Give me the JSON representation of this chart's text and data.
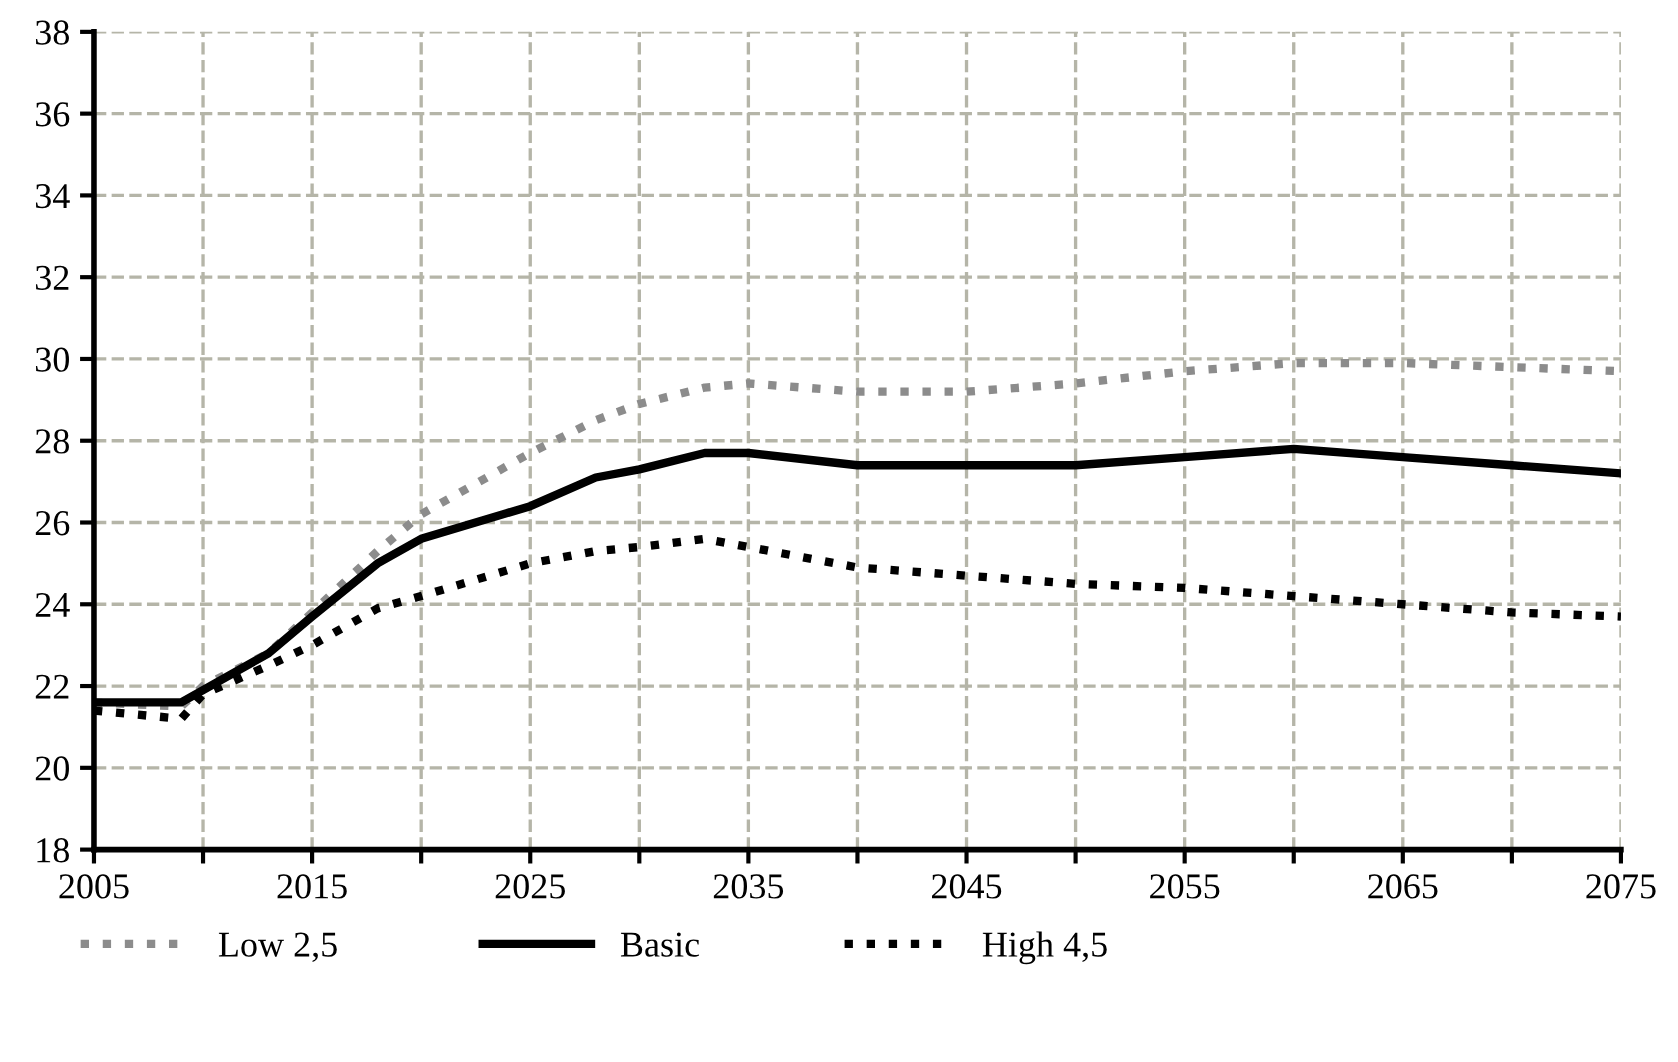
{
  "chart_data": {
    "type": "line",
    "x": [
      2005,
      2009,
      2010,
      2013,
      2015,
      2018,
      2020,
      2025,
      2028,
      2030,
      2033,
      2035,
      2040,
      2045,
      2050,
      2055,
      2060,
      2065,
      2070,
      2075
    ],
    "series": [
      {
        "name": "Low 2,5",
        "color": "#8c8c8c",
        "line_style": "dotted",
        "values": [
          21.6,
          21.5,
          22.0,
          22.8,
          23.8,
          25.3,
          26.2,
          27.7,
          28.5,
          28.9,
          29.3,
          29.4,
          29.2,
          29.2,
          29.4,
          29.7,
          29.9,
          29.9,
          29.8,
          29.7
        ]
      },
      {
        "name": "Basic",
        "color": "#000000",
        "line_style": "solid",
        "values": [
          21.6,
          21.6,
          21.9,
          22.8,
          23.7,
          25.0,
          25.6,
          26.4,
          27.1,
          27.3,
          27.7,
          27.7,
          27.4,
          27.4,
          27.4,
          27.6,
          27.8,
          27.6,
          27.4,
          27.2
        ]
      },
      {
        "name": "High 4,5",
        "color": "#000000",
        "line_style": "dotted",
        "values": [
          21.4,
          21.2,
          21.8,
          22.5,
          23.0,
          23.9,
          24.2,
          25.0,
          25.3,
          25.4,
          25.6,
          25.4,
          24.9,
          24.7,
          24.5,
          24.4,
          24.2,
          24.0,
          23.8,
          23.7
        ]
      }
    ],
    "xlim": [
      2005,
      2075
    ],
    "xticks": [
      2005,
      {
        "value": 2010,
        "label": null
      },
      2015,
      {
        "value": 2020,
        "label": null
      },
      2025,
      {
        "value": 2030,
        "label": null
      },
      2035,
      {
        "value": 2040,
        "label": null
      },
      2045,
      {
        "value": 2050,
        "label": null
      },
      2055,
      {
        "value": 2060,
        "label": null
      },
      2065,
      {
        "value": 2070,
        "label": null
      },
      2075
    ],
    "ylim": [
      18,
      38
    ],
    "yticks": [
      18,
      20,
      22,
      24,
      26,
      28,
      30,
      32,
      34,
      36,
      38
    ],
    "grid": true,
    "legend": "bottom",
    "marker": "none"
  }
}
